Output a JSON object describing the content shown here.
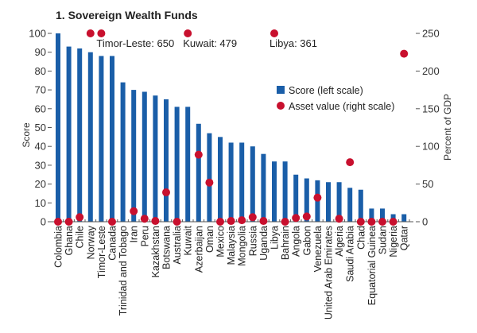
{
  "chart_data": {
    "type": "bar",
    "title": "1. Sovereign Wealth Funds",
    "xlabel": "",
    "ylabel": "Score",
    "y2label": "Percent of GDP",
    "ylim": [
      0,
      100
    ],
    "y2lim": [
      0,
      250
    ],
    "yticks": [
      0,
      10,
      20,
      30,
      40,
      50,
      60,
      70,
      80,
      90,
      100
    ],
    "y2ticks": [
      0,
      50,
      100,
      150,
      200,
      250
    ],
    "grid": false,
    "legend_position": "center-right",
    "categories": [
      "Colombia",
      "Ghana",
      "Chile",
      "Norway",
      "Timor-Leste",
      "Canada",
      "Trinidad and Tobago",
      "Iran",
      "Peru",
      "Kazakhstan",
      "Botswana",
      "Australia",
      "Kuwait",
      "Azerbaijan",
      "Oman",
      "Mexico",
      "Malaysia",
      "Mongolia",
      "Russia",
      "Uganda",
      "Libya",
      "Bahrain",
      "Angola",
      "Gabon",
      "Venezuela",
      "United Arab Emirates",
      "Algeria",
      "Saudi Arabia",
      "Chad",
      "Equatorial Guinea",
      "Sudan",
      "Nigeria",
      "Qatar"
    ],
    "series": [
      {
        "name": "Score (left scale)",
        "type": "bar",
        "axis": "left",
        "color": "#1a5ea8",
        "values": [
          100,
          93,
          92,
          90,
          88,
          88,
          74,
          70,
          69,
          67,
          65,
          61,
          61,
          52,
          47,
          45,
          42,
          42,
          40,
          36,
          32,
          32,
          25,
          23,
          22,
          21,
          21,
          18,
          17,
          7,
          7,
          4,
          4
        ]
      },
      {
        "name": "Asset value (right scale)",
        "type": "scatter",
        "axis": "right",
        "color": "#c8102e",
        "values": [
          0,
          0,
          6,
          250,
          650,
          0,
          null,
          14,
          4,
          1,
          39,
          0,
          479,
          89,
          52,
          0,
          1,
          2,
          6,
          1,
          361,
          0,
          5,
          7,
          32,
          null,
          4,
          79,
          0,
          0,
          0,
          0,
          223
        ]
      }
    ],
    "annotations": [
      {
        "text": "Timor-Leste: 650",
        "category": "Timor-Leste"
      },
      {
        "text": "Kuwait: 479",
        "category": "Kuwait"
      },
      {
        "text": "Libya: 361",
        "category": "Libya"
      }
    ],
    "legend": [
      {
        "label": "Score (left scale)",
        "marker": "square",
        "color": "#1a5ea8"
      },
      {
        "label": "Asset value (right scale)",
        "marker": "circle",
        "color": "#c8102e"
      }
    ]
  }
}
